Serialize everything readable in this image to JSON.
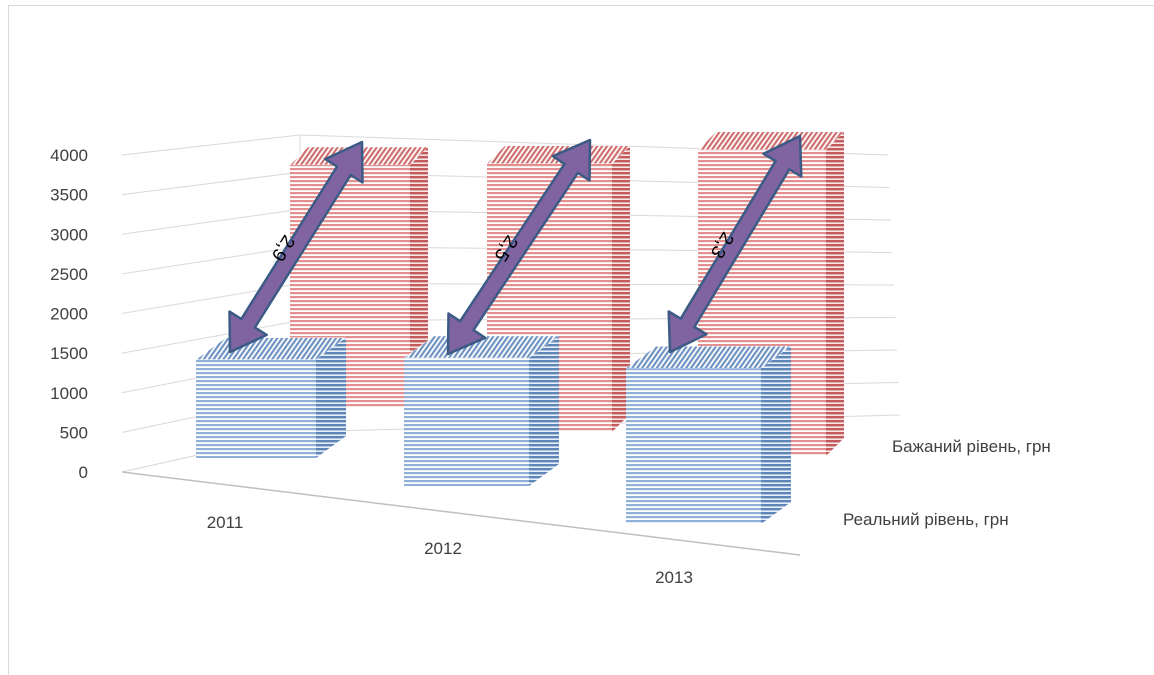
{
  "chart_data": {
    "type": "bar",
    "view": "3d-depth",
    "categories": [
      "2011",
      "2012",
      "2013"
    ],
    "series": [
      {
        "name": "Реальний рівень, грн",
        "values": [
          1250,
          1550,
          1800
        ],
        "color": "#8fb1d9"
      },
      {
        "name": "Бажаний рівень, грн",
        "values": [
          3600,
          3750,
          4050
        ],
        "color": "#e48f8f"
      }
    ],
    "ratios": [
      "2,9",
      "2,5",
      "2,3"
    ],
    "ratio_arrow_color": "#8064a2",
    "yticks": [
      "0",
      "500",
      "1000",
      "1500",
      "2000",
      "2500",
      "3000",
      "3500",
      "4000"
    ],
    "ylim": [
      0,
      4000
    ],
    "grid": true,
    "legend": "none"
  }
}
